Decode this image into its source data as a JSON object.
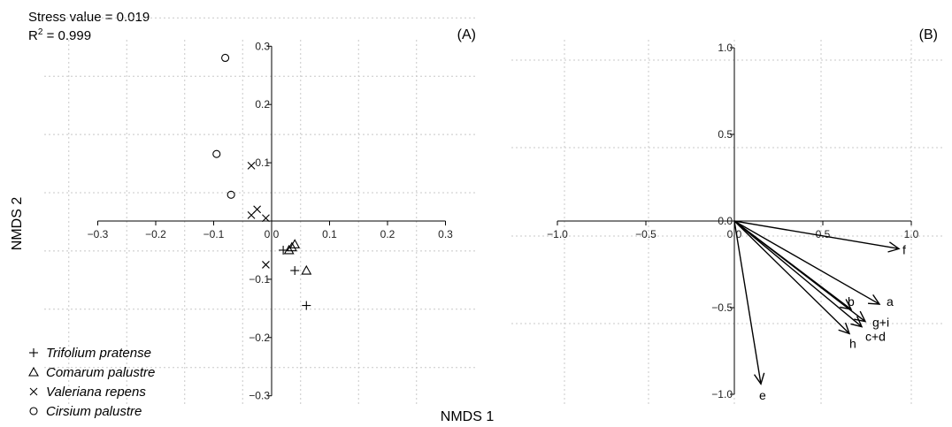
{
  "stats": {
    "stress_label": "Stress value = 0.019",
    "r2_prefix": "R",
    "r2_sup": "2",
    "r2_suffix": " = 0.999"
  },
  "shared_xlabel": "NMDS 1",
  "shared_ylabel": "NMDS 2",
  "chart_data": [
    {
      "type": "scatter",
      "panel_label": "(A)",
      "xlim": [
        -0.35,
        0.35
      ],
      "ylim": [
        -0.32,
        0.32
      ],
      "xticks": [
        -0.3,
        -0.2,
        -0.1,
        0.0,
        0.1,
        0.2,
        0.3
      ],
      "yticks": [
        -0.3,
        -0.2,
        -0.1,
        0.1,
        0.2,
        0.3
      ],
      "grid": true,
      "legend_position": "bottom-left",
      "series": [
        {
          "name": "Trifolium pratense",
          "marker": "plus",
          "points": [
            [
              0.02,
              -0.05
            ],
            [
              0.04,
              -0.085
            ],
            [
              0.06,
              -0.145
            ]
          ]
        },
        {
          "name": "Comarum palustre",
          "marker": "triangle",
          "points": [
            [
              0.03,
              -0.05
            ],
            [
              0.035,
              -0.045
            ],
            [
              0.04,
              -0.04
            ],
            [
              0.06,
              -0.085
            ]
          ]
        },
        {
          "name": "Valeriana repens",
          "marker": "cross",
          "points": [
            [
              -0.035,
              0.095
            ],
            [
              -0.035,
              0.01
            ],
            [
              -0.025,
              0.02
            ],
            [
              -0.01,
              0.005
            ],
            [
              -0.01,
              -0.075
            ]
          ]
        },
        {
          "name": "Cirsium palustre",
          "marker": "circle",
          "points": [
            [
              -0.08,
              0.28
            ],
            [
              -0.095,
              0.115
            ],
            [
              -0.07,
              0.045
            ]
          ]
        }
      ]
    },
    {
      "type": "vectors",
      "panel_label": "(B)",
      "xlim": [
        -1.0,
        1.2
      ],
      "ylim": [
        -1.05,
        1.05
      ],
      "xticks": [
        "-1.0",
        "-0.5",
        "0.0",
        "0.5",
        "1.0"
      ],
      "yticks": [
        "-1.0",
        "-0.5",
        "0.0",
        "0.5",
        "1.0"
      ],
      "grid": true,
      "vectors": [
        {
          "label": "a",
          "x": 0.82,
          "y": -0.48
        },
        {
          "label": "b",
          "x": 0.66,
          "y": -0.51
        },
        {
          "label": "g+i",
          "x": 0.74,
          "y": -0.58
        },
        {
          "label": "c+d",
          "x": 0.72,
          "y": -0.61
        },
        {
          "label": "h",
          "x": 0.65,
          "y": -0.65
        },
        {
          "label": "f",
          "x": 0.93,
          "y": -0.16
        },
        {
          "label": "e",
          "x": 0.15,
          "y": -0.94
        }
      ]
    }
  ]
}
